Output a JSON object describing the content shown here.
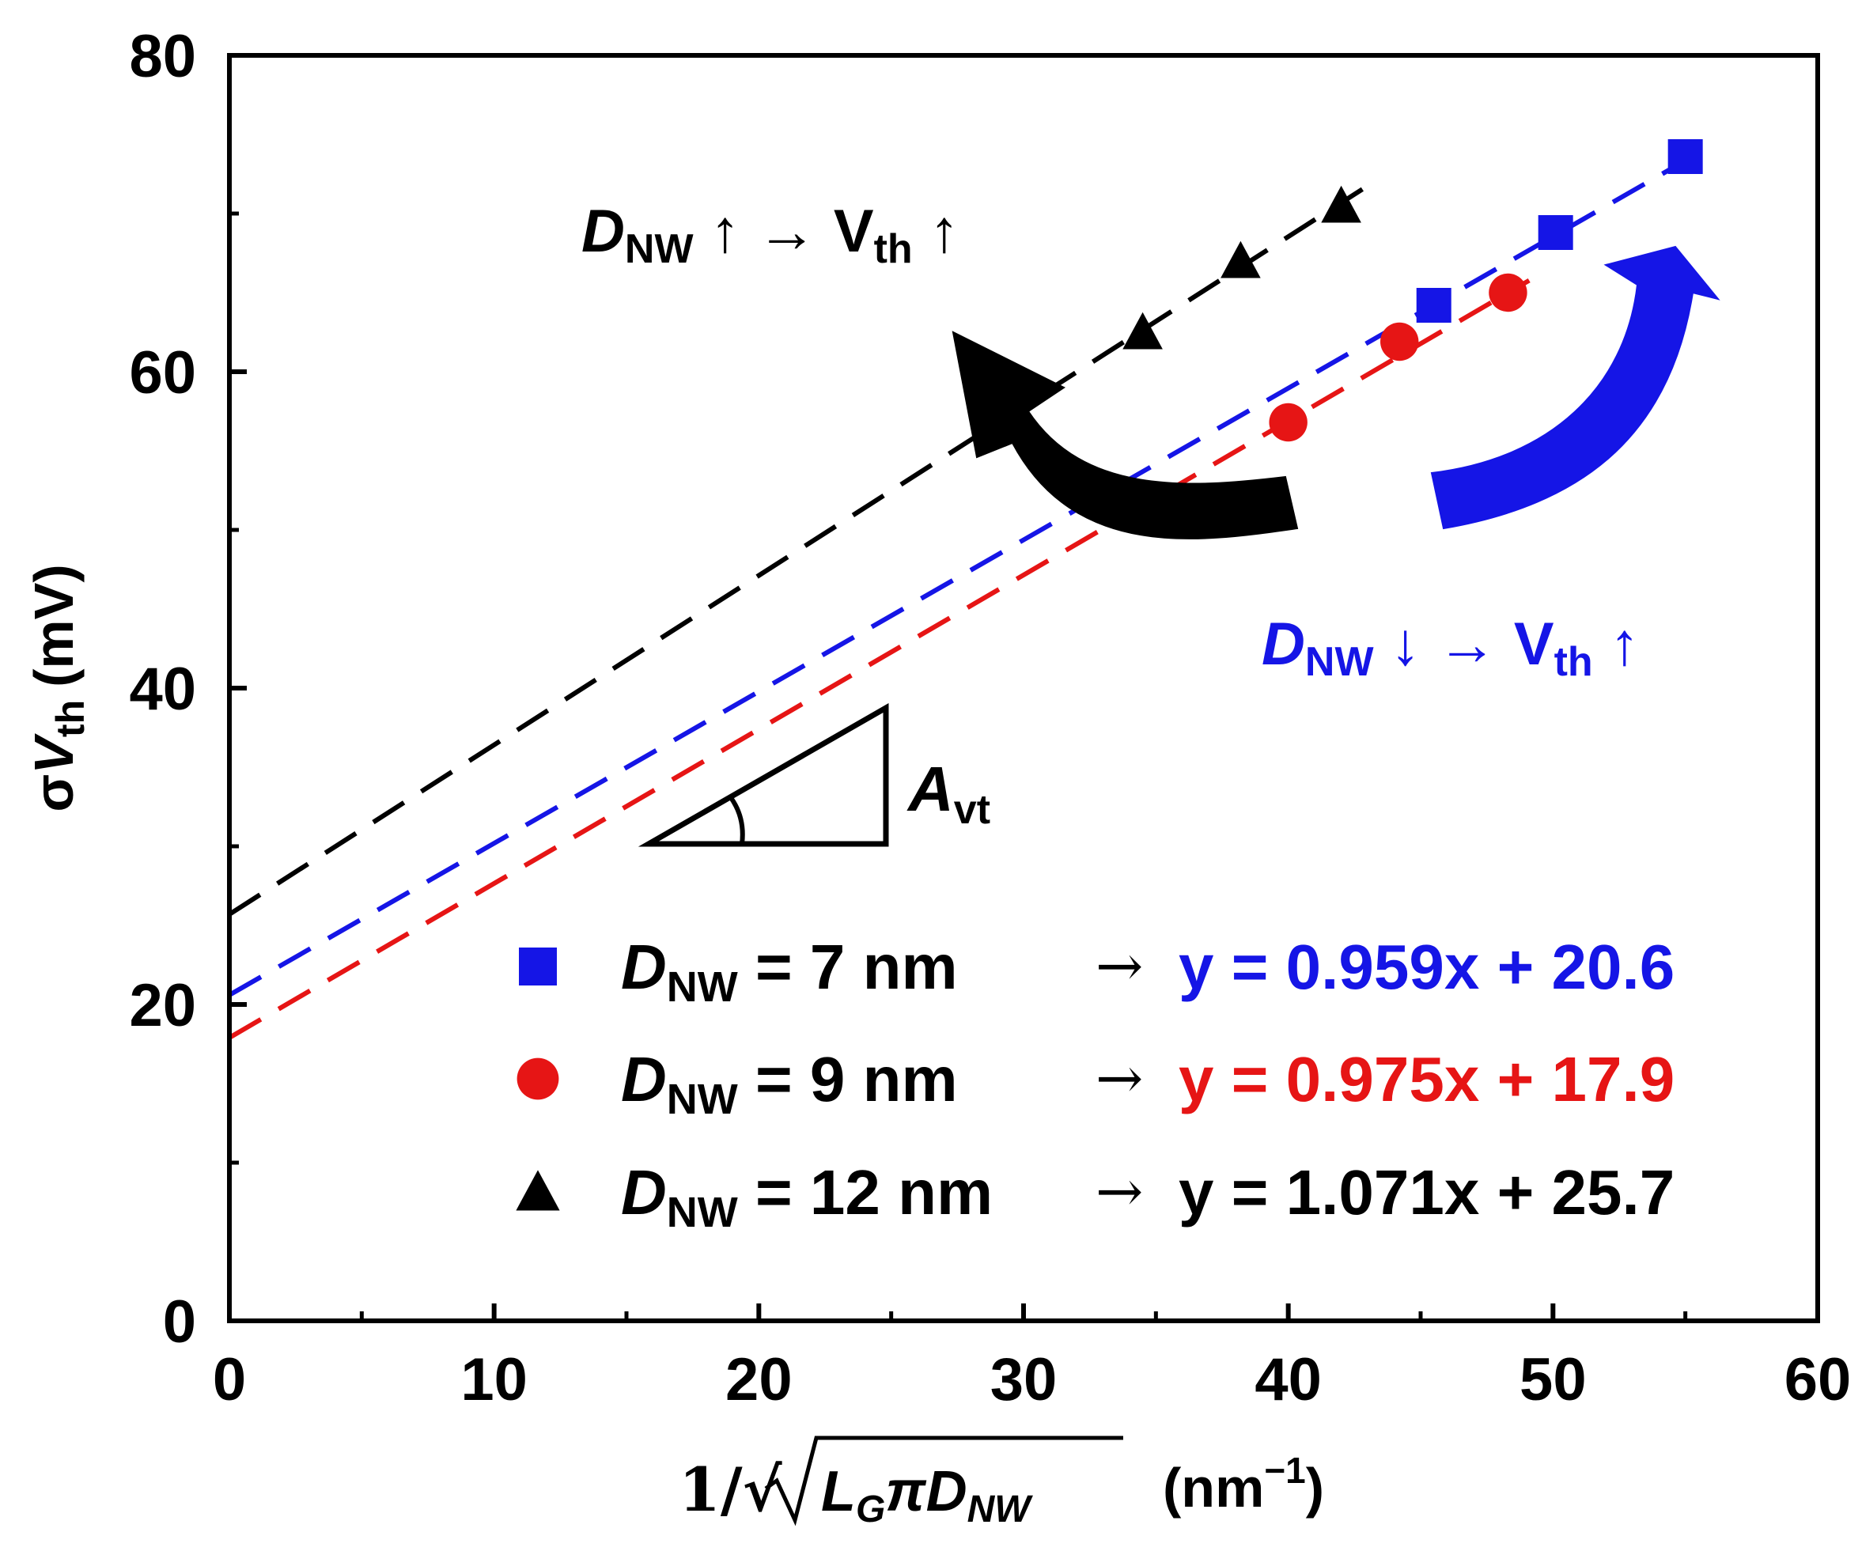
{
  "chart_data": {
    "type": "scatter",
    "title": "",
    "xlabel": {
      "prefix": "1/√",
      "radicand": "L",
      "radicand_sub": "G",
      "middle": "πD",
      "middle_sub": "NW",
      "unit": "(nm",
      "unit_sup": "−1",
      "unit_close": ")"
    },
    "ylabel": {
      "sigma": "σ",
      "var": "V",
      "var_sub": "th",
      "unit": "(mV)"
    },
    "xlim": [
      0,
      60
    ],
    "ylim": [
      0,
      80
    ],
    "xticks": [
      "0",
      "10",
      "20",
      "30",
      "40",
      "50",
      "60"
    ],
    "yticks": [
      "0",
      "20",
      "40",
      "60",
      "80"
    ],
    "series": [
      {
        "name": "D_NW = 7 nm",
        "label_main": "D",
        "label_sub": "NW",
        "label_rest": " = 7 nm",
        "marker": "square",
        "color": "#1515e6",
        "x": [
          45.5,
          50.1,
          55.0
        ],
        "y": [
          64.2,
          68.8,
          73.6
        ],
        "fit": {
          "slope": 0.959,
          "intercept": 20.6,
          "equation": "y = 0.959x + 20.6"
        }
      },
      {
        "name": "D_NW = 9 nm",
        "label_main": "D",
        "label_sub": "NW",
        "label_rest": " = 9 nm",
        "marker": "circle",
        "color": "#e61515",
        "x": [
          40.0,
          44.2,
          48.3
        ],
        "y": [
          56.8,
          61.9,
          65.0
        ],
        "fit": {
          "slope": 0.975,
          "intercept": 17.9,
          "equation": "y = 0.975x + 17.9"
        }
      },
      {
        "name": "D_NW = 12 nm",
        "label_main": "D",
        "label_sub": "NW",
        "label_rest": " = 12 nm",
        "marker": "triangle",
        "color": "#000000",
        "x": [
          34.5,
          38.2,
          42.0
        ],
        "y": [
          62.5,
          67.0,
          70.5
        ],
        "fit": {
          "slope": 1.071,
          "intercept": 25.7,
          "equation": "y = 1.071x + 25.7"
        }
      }
    ],
    "legend_arrow": "→",
    "annotations": [
      {
        "id": "black",
        "main": "D",
        "sub": "NW",
        "text1": " ↑ → V",
        "sub2": "th",
        "text2": " ↑",
        "color": "#000000"
      },
      {
        "id": "blue",
        "main": "D",
        "sub": "NW",
        "text1": " ↓ → V",
        "sub2": "th",
        "text2": " ↑",
        "color": "#1515e6"
      },
      {
        "id": "slope",
        "main": "A",
        "sub": "vt",
        "color": "#000000"
      }
    ]
  }
}
